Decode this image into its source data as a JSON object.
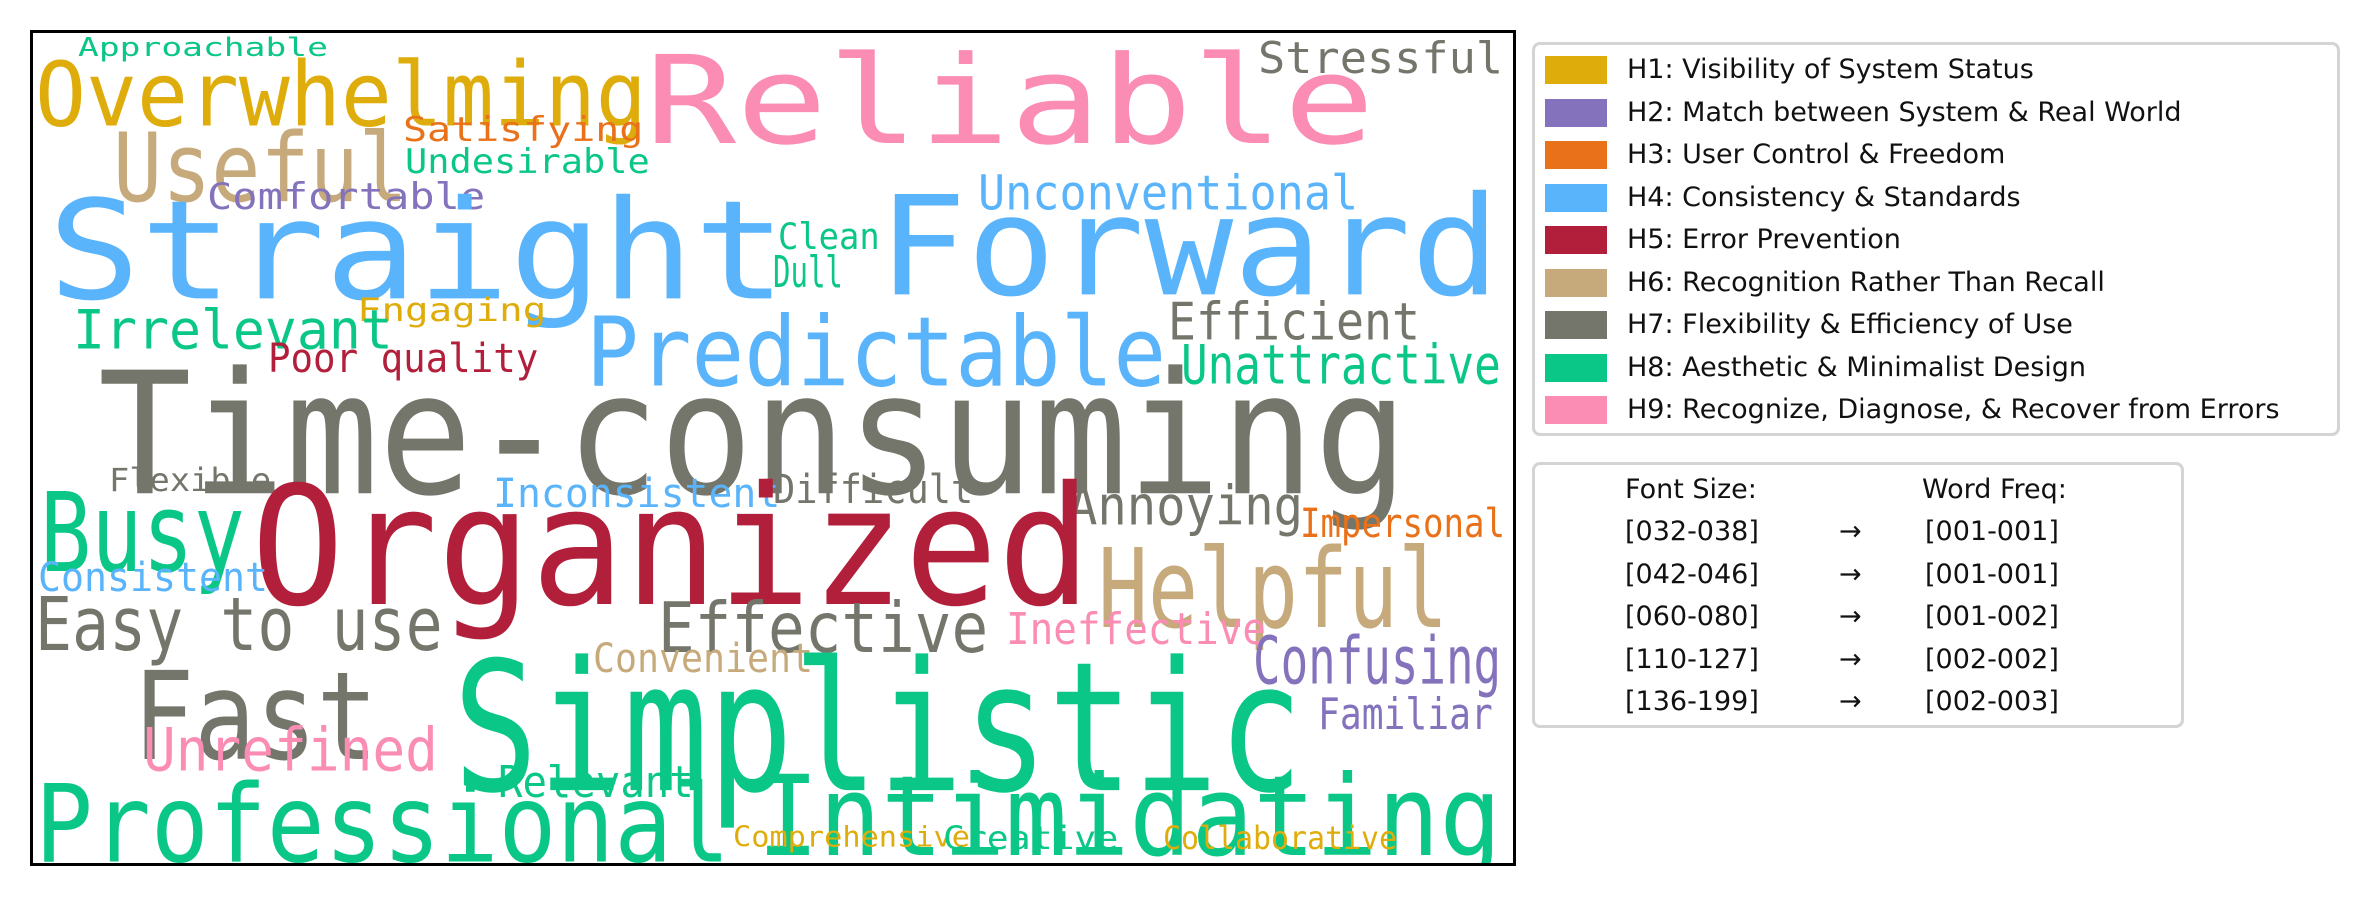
{
  "groups": [
    {
      "id": "H1",
      "label": "H1: Visibility of System Status",
      "color": "#dfad0b"
    },
    {
      "id": "H2",
      "label": "H2: Match between System & Real World",
      "color": "#8472bc"
    },
    {
      "id": "H3",
      "label": "H3: User Control & Freedom",
      "color": "#e8711a"
    },
    {
      "id": "H4",
      "label": "H4: Consistency & Standards",
      "color": "#5ab4fb"
    },
    {
      "id": "H5",
      "label": "H5: Error Prevention",
      "color": "#b21f3b"
    },
    {
      "id": "H6",
      "label": "H6: Recognition Rather Than Recall",
      "color": "#c7aa7c"
    },
    {
      "id": "H7",
      "label": "H7: Flexibility & Efficiency of Use",
      "color": "#74756b"
    },
    {
      "id": "H8",
      "label": "H8: Aesthetic & Minimalist Design",
      "color": "#0bc787"
    },
    {
      "id": "H9",
      "label": "H9: Recognize, Diagnose, & Recover from Errors",
      "color": "#fb8cb4"
    }
  ],
  "words": [
    {
      "text": "Approachable",
      "group": "H8"
    },
    {
      "text": "Overwhelming",
      "group": "H1"
    },
    {
      "text": "Reliable",
      "group": "H9"
    },
    {
      "text": "Stressful",
      "group": "H7"
    },
    {
      "text": "Useful",
      "group": "H6"
    },
    {
      "text": "Satisfying",
      "group": "H3"
    },
    {
      "text": "Undesirable",
      "group": "H8"
    },
    {
      "text": "Comfortable",
      "group": "H2"
    },
    {
      "text": "Unconventional",
      "group": "H4"
    },
    {
      "text": "Straight",
      "group": "H4"
    },
    {
      "text": "Forward",
      "group": "H4"
    },
    {
      "text": "Clean",
      "group": "H8"
    },
    {
      "text": "Dull",
      "group": "H8"
    },
    {
      "text": "Engaging",
      "group": "H1"
    },
    {
      "text": "Irrelevant",
      "group": "H8"
    },
    {
      "text": "Efficient",
      "group": "H7"
    },
    {
      "text": "Predictable",
      "group": "H4"
    },
    {
      "text": "Poor quality",
      "group": "H5"
    },
    {
      "text": "Unattractive",
      "group": "H8"
    },
    {
      "text": "Time-consuming",
      "group": "H7"
    },
    {
      "text": "Flexible",
      "group": "H7"
    },
    {
      "text": "Inconsistent",
      "group": "H4"
    },
    {
      "text": "Difficult",
      "group": "H7"
    },
    {
      "text": "Annoying",
      "group": "H7"
    },
    {
      "text": "Busy",
      "group": "H8"
    },
    {
      "text": "Organized",
      "group": "H5"
    },
    {
      "text": "Impersonal",
      "group": "H3"
    },
    {
      "text": "Consistent",
      "group": "H4"
    },
    {
      "text": "Helpful",
      "group": "H6"
    },
    {
      "text": "Easy to use",
      "group": "H7"
    },
    {
      "text": "Effective",
      "group": "H7"
    },
    {
      "text": "Ineffective",
      "group": "H9"
    },
    {
      "text": "Convenient",
      "group": "H6"
    },
    {
      "text": "Confusing",
      "group": "H2"
    },
    {
      "text": "Fast",
      "group": "H7"
    },
    {
      "text": "Simplistic",
      "group": "H8"
    },
    {
      "text": "Familiar",
      "group": "H2"
    },
    {
      "text": "Unrefined",
      "group": "H9"
    },
    {
      "text": "Relevant",
      "group": "H8"
    },
    {
      "text": "Professional",
      "group": "H8"
    },
    {
      "text": "Intimidating",
      "group": "H8"
    },
    {
      "text": "Comprehensive",
      "group": "H1"
    },
    {
      "text": "Creative",
      "group": "H8"
    },
    {
      "text": "Collaborative",
      "group": "H1"
    }
  ],
  "size_legend": {
    "header_left": "Font Size:",
    "header_right": "Word Freq:",
    "arrow": "→",
    "rows": [
      {
        "size": "[032-038]",
        "freq": "[001-001]"
      },
      {
        "size": "[042-046]",
        "freq": "[001-001]"
      },
      {
        "size": "[060-080]",
        "freq": "[001-002]"
      },
      {
        "size": "[110-127]",
        "freq": "[002-002]"
      },
      {
        "size": "[136-199]",
        "freq": "[002-003]"
      }
    ]
  }
}
